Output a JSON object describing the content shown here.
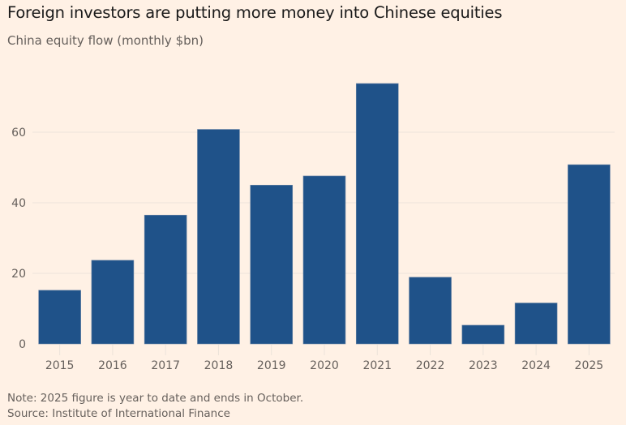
{
  "header": {
    "title": "Foreign investors are putting more money into Chinese equities",
    "subtitle": "China equity flow (monthly $bn)"
  },
  "footer": {
    "note": "Note: 2025 figure is year to date and ends in October.",
    "source": "Source: Institute of International Finance"
  },
  "colors": {
    "background": "#fff1e5",
    "bar": "#1f5289",
    "grid": "#ece3da",
    "text": "#66605c"
  },
  "chart_data": {
    "type": "bar",
    "title": "Foreign investors are putting more money into Chinese equities",
    "subtitle": "China equity flow (monthly $bn)",
    "xlabel": "",
    "ylabel": "",
    "categories": [
      "2015",
      "2016",
      "2017",
      "2018",
      "2019",
      "2020",
      "2021",
      "2022",
      "2023",
      "2024",
      "2025"
    ],
    "values": [
      15.2,
      23.7,
      36.5,
      60.8,
      45.0,
      47.6,
      73.8,
      18.9,
      5.3,
      11.6,
      50.8
    ],
    "ylim": [
      0,
      80
    ],
    "yticks": [
      0,
      20,
      40,
      60
    ],
    "ytick_labels": [
      "0",
      "20",
      "40",
      "60"
    ],
    "grid": true,
    "legend": "none"
  }
}
